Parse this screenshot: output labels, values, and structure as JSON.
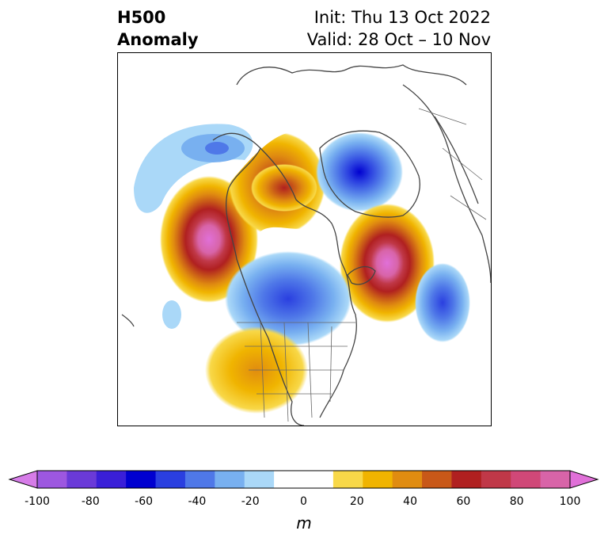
{
  "title": {
    "field": "H500",
    "type": "Anomaly",
    "init": "Init: Thu 13 Oct 2022",
    "valid": "Valid: 28 Oct – 10 Nov"
  },
  "map": {
    "region": "North America / North Pacific (polar stereographic)",
    "anomalies": [
      {
        "name": "Alaska/NE Pacific ridge",
        "sign": "positive",
        "peak_m": 90
      },
      {
        "name": "Canada / Hudson Bay ridge",
        "sign": "positive",
        "peak_m": 60
      },
      {
        "name": "Greenland / Arctic trough",
        "sign": "negative",
        "peak_m": -70
      },
      {
        "name": "North Atlantic ridge",
        "sign": "positive",
        "peak_m": 80
      },
      {
        "name": "Central US trough",
        "sign": "negative",
        "peak_m": -40
      },
      {
        "name": "Western US ridge",
        "sign": "positive",
        "peak_m": 40
      },
      {
        "name": "Eastern Atlantic trough",
        "sign": "negative",
        "peak_m": -30
      },
      {
        "name": "Aleutian trough",
        "sign": "negative",
        "peak_m": -30
      }
    ]
  },
  "colorbar": {
    "unit": "m",
    "ticks": [
      "-100",
      "-80",
      "-60",
      "-40",
      "-20",
      "0",
      "20",
      "40",
      "60",
      "80",
      "100"
    ],
    "colors": [
      "#d67ce8",
      "#9d57e0",
      "#6a3ad8",
      "#3a1fd8",
      "#0000d0",
      "#2a3fe0",
      "#4f78e8",
      "#78b0f0",
      "#aad8f8",
      "#ffffff",
      "#ffffff",
      "#f8d848",
      "#f0b400",
      "#e08c10",
      "#c85818",
      "#b02020",
      "#c03848",
      "#d04878",
      "#d864a8",
      "#e070d8"
    ]
  }
}
